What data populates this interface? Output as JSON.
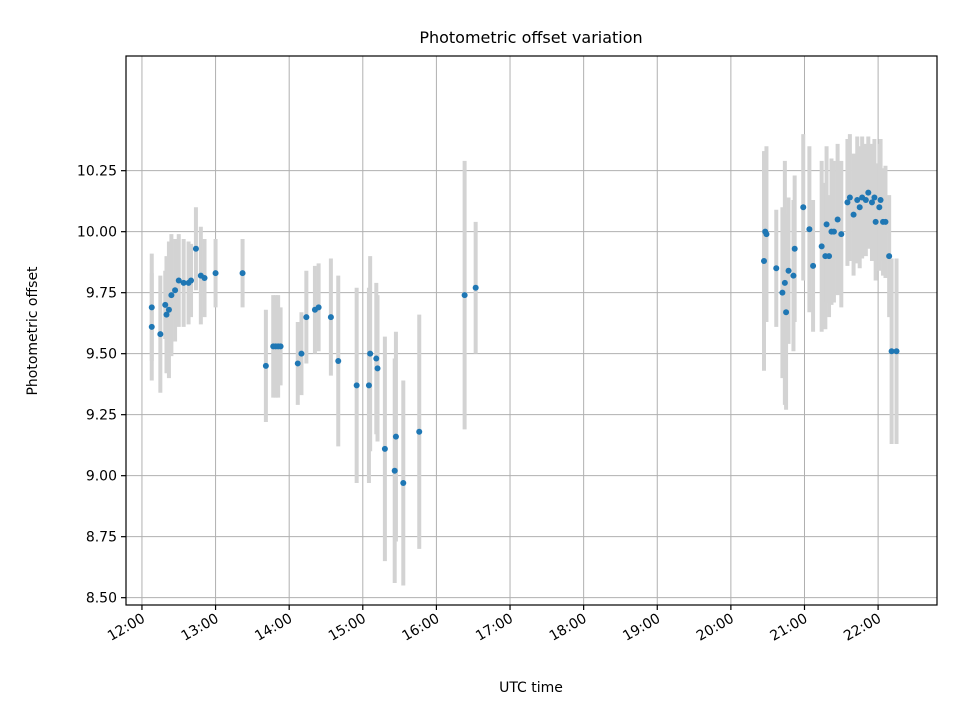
{
  "chart_data": {
    "type": "scatter",
    "title": "Photometric offset variation",
    "xlabel": "UTC time",
    "ylabel": "Photometric offset",
    "xlim": [
      "11:47",
      "22:48"
    ],
    "ylim": [
      8.47,
      10.72
    ],
    "x_ticks": [
      "12:00",
      "13:00",
      "14:00",
      "15:00",
      "16:00",
      "17:00",
      "18:00",
      "19:00",
      "20:00",
      "21:00",
      "22:00"
    ],
    "y_ticks": [
      "8.50",
      "8.75",
      "9.00",
      "9.25",
      "9.50",
      "9.75",
      "10.00",
      "10.25"
    ],
    "grid": true,
    "colors": {
      "points": "#1f77b4",
      "error_bars": "#d3d3d3",
      "grid": "#b0b0b0"
    },
    "series": [
      {
        "x": [
          "12:08",
          "12:08",
          "12:15",
          "12:19",
          "12:20",
          "12:22",
          "12:24",
          "12:27",
          "12:30",
          "12:34",
          "12:38",
          "12:40",
          "12:44",
          "12:48",
          "12:51",
          "13:00",
          "13:22",
          "13:41",
          "13:47",
          "13:49",
          "13:51",
          "13:53",
          "14:07",
          "14:10",
          "14:14",
          "14:21",
          "14:24",
          "14:34",
          "14:40",
          "14:55",
          "15:05",
          "15:06",
          "15:11",
          "15:12",
          "15:18",
          "15:26",
          "15:27",
          "15:33",
          "15:46",
          "16:23",
          "16:32",
          "20:27",
          "20:28",
          "20:29",
          "20:37",
          "20:42",
          "20:44",
          "20:45",
          "20:47",
          "20:51",
          "20:52",
          "20:59",
          "21:04",
          "21:07",
          "21:14",
          "21:17",
          "21:18",
          "21:20",
          "21:22",
          "21:24",
          "21:27",
          "21:30",
          "21:35",
          "21:37",
          "21:40",
          "21:43",
          "21:45",
          "21:47",
          "21:50",
          "21:52",
          "21:55",
          "21:57",
          "21:58",
          "22:01",
          "22:02",
          "22:04",
          "22:06",
          "22:09",
          "22:11",
          "22:15"
        ],
        "y": [
          9.69,
          9.61,
          9.58,
          9.7,
          9.66,
          9.68,
          9.74,
          9.76,
          9.8,
          9.79,
          9.79,
          9.8,
          9.93,
          9.82,
          9.81,
          9.83,
          9.83,
          9.45,
          9.53,
          9.53,
          9.53,
          9.53,
          9.46,
          9.5,
          9.65,
          9.68,
          9.69,
          9.65,
          9.47,
          9.37,
          9.37,
          9.5,
          9.48,
          9.44,
          9.11,
          9.02,
          9.16,
          8.97,
          9.18,
          9.74,
          9.77,
          9.88,
          10.0,
          9.99,
          9.85,
          9.75,
          9.79,
          9.67,
          9.84,
          9.82,
          9.93,
          10.1,
          10.01,
          9.86,
          9.94,
          9.9,
          10.03,
          9.9,
          10.0,
          10.0,
          10.05,
          9.99,
          10.12,
          10.14,
          10.07,
          10.13,
          10.1,
          10.14,
          10.13,
          10.16,
          10.12,
          10.14,
          10.04,
          10.1,
          10.13,
          10.04,
          10.04,
          9.9,
          9.51,
          9.51
        ],
        "err": [
          0.22,
          0.22,
          0.24,
          0.14,
          0.24,
          0.28,
          0.25,
          0.21,
          0.19,
          0.18,
          0.17,
          0.15,
          0.17,
          0.2,
          0.16,
          0.14,
          0.14,
          0.23,
          0.21,
          0.21,
          0.21,
          0.16,
          0.17,
          0.17,
          0.19,
          0.18,
          0.18,
          0.24,
          0.35,
          0.4,
          0.4,
          0.4,
          0.31,
          0.3,
          0.46,
          0.46,
          0.43,
          0.42,
          0.48,
          0.55,
          0.27,
          0.45,
          0.33,
          0.36,
          0.24,
          0.35,
          0.5,
          0.4,
          0.3,
          0.31,
          0.3,
          0.3,
          0.34,
          0.27,
          0.35,
          0.3,
          0.32,
          0.25,
          0.3,
          0.29,
          0.31,
          0.3,
          0.26,
          0.26,
          0.25,
          0.26,
          0.25,
          0.25,
          0.23,
          0.23,
          0.24,
          0.24,
          0.24,
          0.26,
          0.25,
          0.22,
          0.23,
          0.25,
          0.38,
          0.38
        ]
      }
    ]
  }
}
